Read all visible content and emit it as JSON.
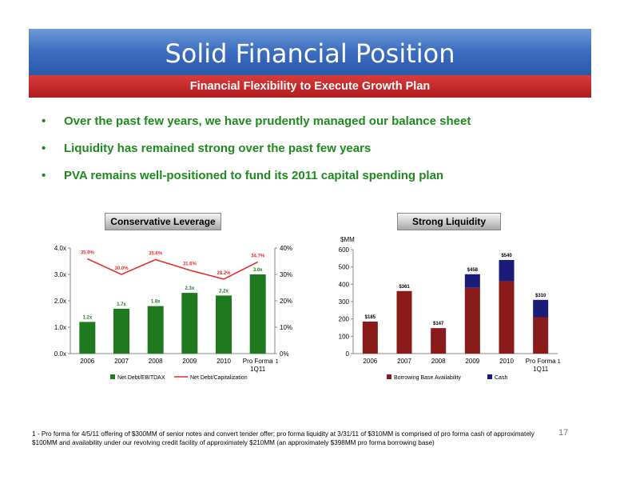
{
  "header": {
    "title": "Solid Financial Position",
    "subtitle": "Financial Flexibility to Execute Growth Plan"
  },
  "bullets": [
    "Over the past few years, we have prudently managed our balance sheet",
    "Liquidity has remained strong over the past few years",
    "PVA remains well-positioned to fund its 2011 capital spending plan"
  ],
  "colors": {
    "banner_blue": "#3f6fc0",
    "banner_red": "#c42828",
    "bullet_green": "#1e8a1e",
    "bar_green": "#1f7a1f",
    "line_red": "#e03030",
    "bar_maroon": "#8b1a1a",
    "bar_navy": "#1b1b7a"
  },
  "chart_data": [
    {
      "type": "bar",
      "title": "Conservative Leverage",
      "categories": [
        "2006",
        "2007",
        "2008",
        "2009",
        "2010",
        "Pro Forma 1Q11"
      ],
      "category_lines": [
        [
          "2006"
        ],
        [
          "2007"
        ],
        [
          "2008"
        ],
        [
          "2009"
        ],
        [
          "2010"
        ],
        [
          "Pro Forma",
          "1Q11"
        ]
      ],
      "footnote_marker": "1",
      "series": [
        {
          "name": "Net Debt/EBITDAX",
          "kind": "bar",
          "axis": "left",
          "values": [
            1.2,
            1.7,
            1.8,
            2.3,
            2.2,
            3.0
          ],
          "labels": [
            "1.2x",
            "1.7x",
            "1.8x",
            "2.3x",
            "2.2x",
            "3.0x"
          ]
        },
        {
          "name": "Net Debt/Capitalization",
          "kind": "line",
          "axis": "right",
          "values": [
            35.9,
            30.0,
            35.6,
            31.6,
            28.2,
            34.7
          ],
          "labels": [
            "35.9%",
            "30.0%",
            "35.6%",
            "31.6%",
            "28.2%",
            "34.7%"
          ]
        }
      ],
      "y_left": {
        "range": [
          0,
          4
        ],
        "ticks": [
          "0.0x",
          "1.0x",
          "2.0x",
          "3.0x",
          "4.0x"
        ]
      },
      "y_right": {
        "range": [
          0,
          40
        ],
        "ticks": [
          "0%",
          "10%",
          "20%",
          "30%",
          "40%"
        ]
      },
      "grid": false,
      "legend": "bottom"
    },
    {
      "type": "bar",
      "stacked": true,
      "title": "Strong Liquidity",
      "ylabel": "$MM",
      "categories": [
        "2006",
        "2007",
        "2008",
        "2009",
        "2010",
        "Pro Forma 1Q11"
      ],
      "category_lines": [
        [
          "2006"
        ],
        [
          "2007"
        ],
        [
          "2008"
        ],
        [
          "2009"
        ],
        [
          "2010"
        ],
        [
          "Pro Forma",
          "1Q11"
        ]
      ],
      "footnote_marker": "1",
      "series": [
        {
          "name": "Borrowing Base Availability",
          "values": [
            185,
            361,
            147,
            380,
            418,
            210
          ]
        },
        {
          "name": "Cash",
          "values": [
            0,
            0,
            0,
            78,
            122,
            100
          ]
        }
      ],
      "totals": [
        "$185",
        "$361",
        "$147",
        "$458",
        "$540",
        "$310"
      ],
      "y": {
        "range": [
          0,
          600
        ],
        "ticks": [
          "0",
          "100",
          "200",
          "300",
          "400",
          "500",
          "600"
        ]
      },
      "grid": false,
      "legend": "bottom"
    }
  ],
  "footnote": "1 - Pro forma for 4/5/11 offering of $300MM of senior notes and convert tender offer; pro forma liquidity at 3/31/11 of $310MM is comprised of pro forma cash of approximately $100MM and availability under our revolving credit facility of approximately $210MM (an approximately $398MM pro forma borrowing base)",
  "page_number": "17"
}
